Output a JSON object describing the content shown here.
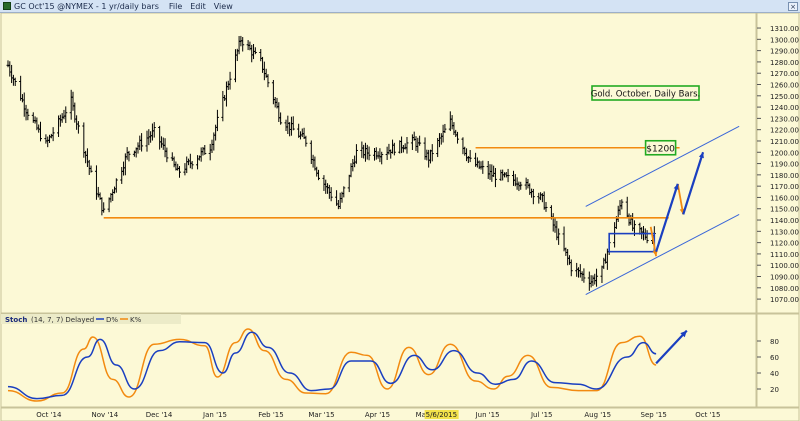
{
  "window": {
    "title": "GC Oct'15 @NYMEX - 1 yr/daily bars",
    "menu": [
      "File",
      "Edit",
      "View"
    ]
  },
  "chart_data": [
    {
      "type": "ohlc",
      "title": "Gold. October. Daily Bars.",
      "x_labels": [
        "Oct '14",
        "Nov '14",
        "Dec '14",
        "Jan '15",
        "Feb '15",
        "Mar '15",
        "Apr '15",
        "Ma5/6/2015",
        "Jun '15",
        "Jul '15",
        "Aug '15",
        "Sep '15",
        "Oct '15"
      ],
      "highlight_label": "5/6/2015",
      "y_ticks": [
        1070,
        1080,
        1090,
        1100,
        1110,
        1120,
        1130,
        1140,
        1150,
        1160,
        1170,
        1180,
        1190,
        1200,
        1210,
        1220,
        1230,
        1240,
        1250,
        1260,
        1270,
        1280,
        1290,
        1300,
        1310
      ],
      "ylim": [
        1063,
        1318
      ],
      "xlim": [
        "2014-09-15",
        "2015-10-31"
      ],
      "price_path": [
        [
          "2014-09-15",
          1277
        ],
        [
          "2014-09-25",
          1238
        ],
        [
          "2014-10-06",
          1207
        ],
        [
          "2014-10-20",
          1245
        ],
        [
          "2014-10-31",
          1180
        ],
        [
          "2014-11-07",
          1147
        ],
        [
          "2014-11-20",
          1198
        ],
        [
          "2014-12-05",
          1218
        ],
        [
          "2014-12-18",
          1182
        ],
        [
          "2015-01-05",
          1205
        ],
        [
          "2015-01-15",
          1262
        ],
        [
          "2015-01-22",
          1300
        ],
        [
          "2015-02-02",
          1280
        ],
        [
          "2015-02-13",
          1230
        ],
        [
          "2015-02-27",
          1210
        ],
        [
          "2015-03-06",
          1180
        ],
        [
          "2015-03-17",
          1152
        ],
        [
          "2015-03-27",
          1200
        ],
        [
          "2015-04-10",
          1200
        ],
        [
          "2015-04-28",
          1210
        ],
        [
          "2015-05-06",
          1195
        ],
        [
          "2015-05-18",
          1227
        ],
        [
          "2015-05-29",
          1192
        ],
        [
          "2015-06-10",
          1180
        ],
        [
          "2015-06-26",
          1174
        ],
        [
          "2015-07-08",
          1158
        ],
        [
          "2015-07-24",
          1098
        ],
        [
          "2015-08-04",
          1086
        ],
        [
          "2015-08-10",
          1095
        ],
        [
          "2015-08-21",
          1158
        ],
        [
          "2015-08-27",
          1133
        ],
        [
          "2015-09-04",
          1125
        ],
        [
          "2015-09-08",
          1128
        ]
      ],
      "annotations": {
        "support_line": {
          "from": [
            "2014-11-07",
            1142
          ],
          "to": [
            "2015-09-16",
            1142
          ]
        },
        "resistance_line": {
          "from": [
            "2015-06-01",
            1204
          ],
          "to": [
            "2015-09-22",
            1204
          ]
        },
        "target_label": "$1200",
        "channel_upper": {
          "from": [
            "2015-08-01",
            1152
          ],
          "to": [
            "2015-10-25",
            1223
          ]
        },
        "channel_lower": {
          "from": [
            "2015-08-01",
            1074
          ],
          "to": [
            "2015-10-25",
            1145
          ]
        },
        "consolidation_box": {
          "from": [
            "2015-08-14",
            1112
          ],
          "to": [
            "2015-09-08",
            1128
          ]
        },
        "projection_blue": [
          [
            [
              "2015-09-09",
              1112
            ],
            [
              "2015-09-21",
              1172
            ]
          ],
          [
            [
              "2015-09-24",
              1145
            ],
            [
              "2015-10-05",
              1200
            ]
          ]
        ],
        "projection_orange": [
          [
            [
              "2015-09-06",
              1134
            ],
            [
              "2015-09-09",
              1108
            ]
          ],
          [
            [
              "2015-09-21",
              1172
            ],
            [
              "2015-09-24",
              1145
            ]
          ]
        ]
      }
    },
    {
      "type": "line",
      "title": "Stoch",
      "params": "(14, 7, 7) Delayed",
      "series": [
        {
          "name": "D%",
          "color": "#1a3fc0",
          "values": [
            [
              "2014-09-15",
              23
            ],
            [
              "2014-10-01",
              8
            ],
            [
              "2014-10-15",
              12
            ],
            [
              "2014-10-29",
              60
            ],
            [
              "2014-11-05",
              82
            ],
            [
              "2014-11-14",
              50
            ],
            [
              "2014-11-24",
              20
            ],
            [
              "2014-12-08",
              68
            ],
            [
              "2014-12-19",
              79
            ],
            [
              "2015-01-02",
              78
            ],
            [
              "2015-01-12",
              40
            ],
            [
              "2015-01-19",
              65
            ],
            [
              "2015-01-28",
              91
            ],
            [
              "2015-02-06",
              72
            ],
            [
              "2015-02-18",
              40
            ],
            [
              "2015-03-02",
              18
            ],
            [
              "2015-03-12",
              20
            ],
            [
              "2015-03-24",
              55
            ],
            [
              "2015-04-04",
              55
            ],
            [
              "2015-04-15",
              27
            ],
            [
              "2015-04-28",
              62
            ],
            [
              "2015-05-08",
              44
            ],
            [
              "2015-05-20",
              68
            ],
            [
              "2015-06-02",
              40
            ],
            [
              "2015-06-12",
              26
            ],
            [
              "2015-06-22",
              32
            ],
            [
              "2015-07-02",
              55
            ],
            [
              "2015-07-15",
              28
            ],
            [
              "2015-07-28",
              26
            ],
            [
              "2015-08-07",
              20
            ],
            [
              "2015-08-24",
              60
            ],
            [
              "2015-09-02",
              78
            ],
            [
              "2015-09-09",
              64
            ]
          ]
        },
        {
          "name": "K%",
          "color": "#f28a10",
          "values": [
            [
              "2014-09-15",
              18
            ],
            [
              "2014-10-01",
              5
            ],
            [
              "2014-10-15",
              15
            ],
            [
              "2014-10-27",
              70
            ],
            [
              "2014-11-01",
              85
            ],
            [
              "2014-11-12",
              32
            ],
            [
              "2014-11-21",
              10
            ],
            [
              "2014-12-05",
              76
            ],
            [
              "2014-12-19",
              82
            ],
            [
              "2015-01-02",
              74
            ],
            [
              "2015-01-09",
              35
            ],
            [
              "2015-01-19",
              78
            ],
            [
              "2015-01-26",
              95
            ],
            [
              "2015-02-04",
              68
            ],
            [
              "2015-02-16",
              32
            ],
            [
              "2015-02-27",
              15
            ],
            [
              "2015-03-10",
              14
            ],
            [
              "2015-03-24",
              66
            ],
            [
              "2015-04-02",
              62
            ],
            [
              "2015-04-13",
              20
            ],
            [
              "2015-04-25",
              72
            ],
            [
              "2015-05-06",
              38
            ],
            [
              "2015-05-18",
              76
            ],
            [
              "2015-06-01",
              30
            ],
            [
              "2015-06-11",
              20
            ],
            [
              "2015-06-19",
              36
            ],
            [
              "2015-06-30",
              62
            ],
            [
              "2015-07-13",
              22
            ],
            [
              "2015-07-28",
              18
            ],
            [
              "2015-08-07",
              18
            ],
            [
              "2015-08-21",
              78
            ],
            [
              "2015-08-31",
              86
            ],
            [
              "2015-09-09",
              50
            ]
          ]
        }
      ],
      "y_ticks": [
        20,
        40,
        60,
        80
      ],
      "ylim": [
        0,
        100
      ],
      "projection_arrow": {
        "from": [
          "2015-09-09",
          52
        ],
        "to": [
          "2015-09-26",
          93
        ]
      }
    }
  ],
  "toolbar_icons": [
    "zoom-icon",
    "scroll-left-icon",
    "scroll-right-icon"
  ]
}
